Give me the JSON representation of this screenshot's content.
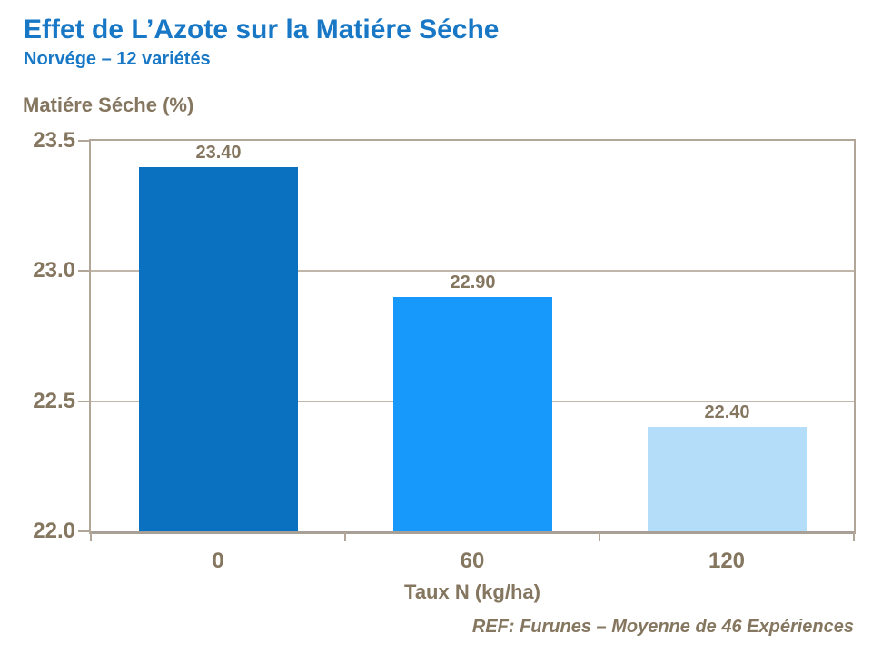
{
  "title": "Effet de L’Azote sur la Matiére Séche",
  "subtitle": "Norvége – 12 variétés",
  "footer_ref": "REF: Furunes – Moyenne de 46 Expériences",
  "colors": {
    "title_blue": "#1878c6",
    "text_brown": "#857660",
    "axis_border": "#b2a698",
    "axis_bottom": "#a8a096",
    "gridline": "#c0b6aa",
    "bar_colors": [
      "#0a71c0",
      "#1699fb",
      "#b4ddfa"
    ]
  },
  "chart_data": {
    "type": "bar",
    "title": "Effet de L’Azote sur la Matiére Séche",
    "subtitle": "Norvége – 12 variétés",
    "categories": [
      "0",
      "60",
      "120"
    ],
    "values": [
      23.4,
      22.9,
      22.4
    ],
    "data_labels": [
      "23.40",
      "22.90",
      "22.40"
    ],
    "xlabel": "Taux N (kg/ha)",
    "ylabel": "Matiére Séche (%)",
    "ylim": [
      22.0,
      23.5
    ],
    "yticks": [
      23.5,
      23.0,
      22.5,
      22.0
    ],
    "ytick_labels": [
      "23.5",
      "23.0",
      "22.5",
      "22.0"
    ],
    "grid": true,
    "legend": false,
    "bar_colors": [
      "#0a71c0",
      "#1699fb",
      "#b4ddfa"
    ],
    "annotation": "REF: Furunes – Moyenne de 46 Expériences"
  }
}
